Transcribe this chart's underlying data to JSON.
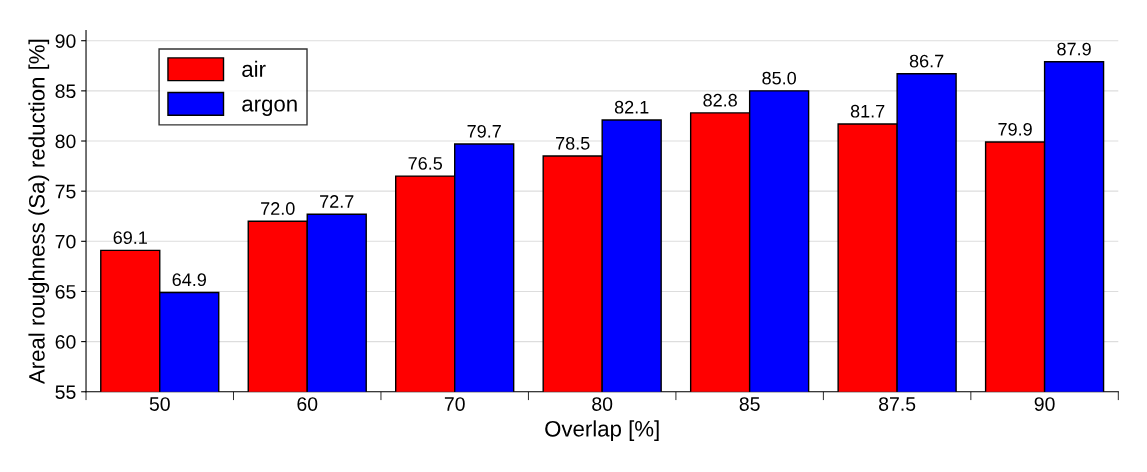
{
  "chart_data": {
    "type": "bar",
    "xlabel": "Overlap [%]",
    "ylabel": "Areal roughness (Sa) reduction [%]",
    "categories": [
      "50",
      "60",
      "70",
      "80",
      "85",
      "87.5",
      "90"
    ],
    "series": [
      {
        "name": "air",
        "color": "#ff0000",
        "values": [
          69.1,
          72.0,
          76.5,
          78.5,
          82.8,
          81.7,
          79.9
        ],
        "value_labels": [
          "69.1",
          "72.0",
          "76.5",
          "78.5",
          "82.8",
          "81.7",
          "79.9"
        ]
      },
      {
        "name": "argon",
        "color": "#0000ff",
        "values": [
          64.9,
          72.7,
          79.7,
          82.1,
          85.0,
          86.7,
          87.9
        ],
        "value_labels": [
          "64.9",
          "72.7",
          "79.7",
          "82.1",
          "85.0",
          "86.7",
          "87.9"
        ]
      }
    ],
    "ylim": [
      55,
      91
    ],
    "yticks": [
      55,
      60,
      65,
      70,
      75,
      80,
      85,
      90
    ],
    "grid": "y",
    "legend": "top left"
  }
}
